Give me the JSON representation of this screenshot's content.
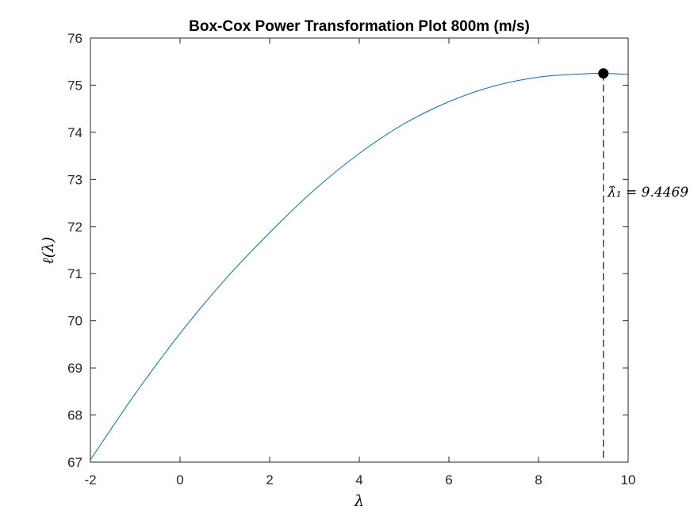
{
  "colors": {
    "curve": "#0072BD",
    "axis": "#262626",
    "marker": "#000000",
    "background": "#ffffff"
  },
  "chart_data": {
    "type": "line",
    "title": "Box-Cox Power Transformation Plot 800m (m/s)",
    "xlabel": "λ",
    "ylabel": "ℓ(λ)",
    "xlim": [
      -2,
      10
    ],
    "ylim": [
      67,
      76
    ],
    "xticks": [
      -2,
      0,
      2,
      4,
      6,
      8,
      10
    ],
    "yticks": [
      67,
      68,
      69,
      70,
      71,
      72,
      73,
      74,
      75,
      76
    ],
    "grid": false,
    "series": [
      {
        "x": [
          -2,
          -1,
          0,
          1,
          2,
          3,
          4,
          5,
          6,
          7,
          8,
          9,
          9.4469,
          10
        ],
        "y": [
          67.05,
          68.45,
          69.73,
          70.87,
          71.87,
          72.78,
          73.55,
          74.18,
          74.65,
          74.98,
          75.17,
          75.24,
          75.25,
          75.23
        ]
      }
    ],
    "optimum": {
      "x": 9.4469,
      "y": 75.25,
      "label": "λ̂₁ = 9.4469"
    }
  }
}
